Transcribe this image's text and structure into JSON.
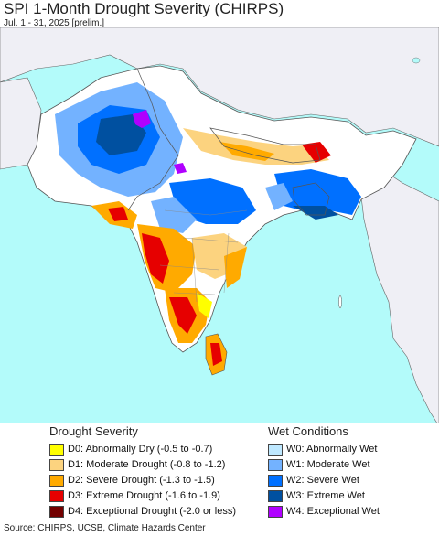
{
  "header": {
    "title": "SPI 1-Month Drought Severity (CHIRPS)",
    "subtitle": "Jul. 1 - 31, 2025 [prelim.]"
  },
  "map": {
    "colors": {
      "ocean": "#b3fbfa",
      "land_outside": "#efeff5",
      "border": "#666666",
      "normal": "#ffffff"
    }
  },
  "legend": {
    "drought_heading": "Drought Severity",
    "wet_heading": "Wet Conditions",
    "drought_items": [
      {
        "label": "D0: Abnormally Dry (-0.5 to -0.7)",
        "color": "#ffff00"
      },
      {
        "label": "D1: Moderate Drought (-0.8 to -1.2)",
        "color": "#fcd37f"
      },
      {
        "label": "D2: Severe Drought (-1.3 to -1.5)",
        "color": "#ffaa00"
      },
      {
        "label": "D3: Extreme Drought (-1.6 to -1.9)",
        "color": "#e60000"
      },
      {
        "label": "D4: Exceptional Drought (-2.0 or less)",
        "color": "#730000"
      }
    ],
    "wet_items": [
      {
        "label": "W0: Abnormally Wet",
        "color": "#bee8ff"
      },
      {
        "label": "W1: Moderate Wet",
        "color": "#73b2ff"
      },
      {
        "label": "W2: Severe Wet",
        "color": "#0070ff"
      },
      {
        "label": "W3: Extreme Wet",
        "color": "#0050a0"
      },
      {
        "label": "W4: Exceptional Wet",
        "color": "#b000ff"
      }
    ]
  },
  "footer": {
    "source": "Source: CHIRPS, UCSB, Climate Hazards Center"
  }
}
